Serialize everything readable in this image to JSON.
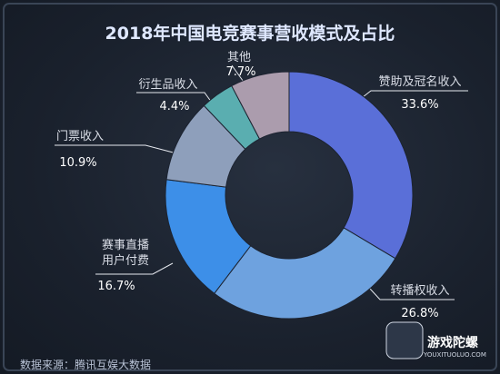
{
  "chart_data": {
    "type": "donut",
    "title": "2018年中国电竞赛事营收模式及占比",
    "categories": [
      "赞助及冠名收入",
      "转播权收入",
      "赛事直播用户付费",
      "门票收入",
      "衍生品收入",
      "其他"
    ],
    "values": [
      33.6,
      26.8,
      16.7,
      10.9,
      4.4,
      7.7
    ],
    "value_labels": [
      "33.6%",
      "26.8%",
      "16.7%",
      "10.9%",
      "4.4%",
      "7.7%"
    ],
    "colors": [
      "#5a6fd8",
      "#6ea2df",
      "#3d8fe8",
      "#8e9fbb",
      "#5aaeb0",
      "#ab9cad"
    ]
  },
  "source": "数据来源：腾讯互娱大数据",
  "watermark": {
    "name": "游戏陀螺",
    "url": "YOUXITUOLUO.COM"
  }
}
